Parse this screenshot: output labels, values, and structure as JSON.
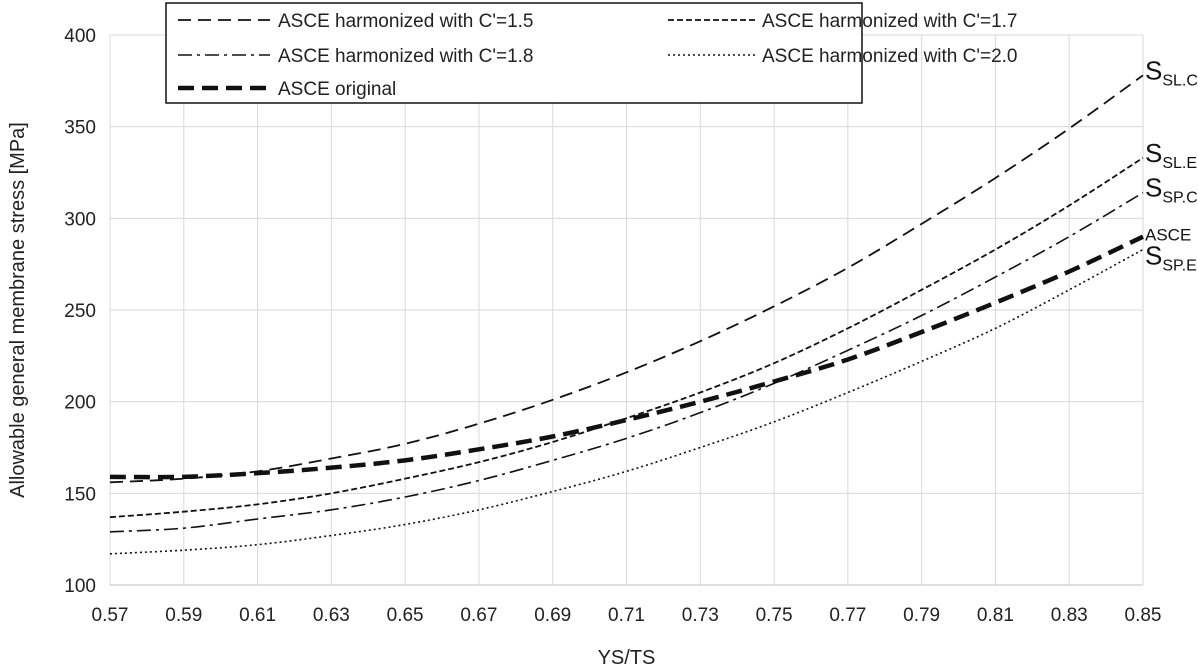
{
  "chart_data": {
    "type": "line",
    "title": "",
    "xlabel": "YS/TS",
    "ylabel": "Allowable general membrane stress [MPa]",
    "xlim": [
      0.57,
      0.85
    ],
    "ylim": [
      100,
      400
    ],
    "x_ticks": [
      "0.57",
      "0.59",
      "0.61",
      "0.63",
      "0.65",
      "0.67",
      "0.69",
      "0.71",
      "0.73",
      "0.75",
      "0.77",
      "0.79",
      "0.81",
      "0.83",
      "0.85"
    ],
    "y_ticks": [
      "100",
      "150",
      "200",
      "250",
      "300",
      "350",
      "400"
    ],
    "grid": true,
    "legend_position": "top",
    "x": [
      0.57,
      0.59,
      0.61,
      0.63,
      0.65,
      0.67,
      0.69,
      0.71,
      0.73,
      0.75,
      0.77,
      0.79,
      0.81,
      0.83,
      0.85
    ],
    "series": [
      {
        "name": "ASCE harmonized with C'=1.5",
        "style": "dashed",
        "end_label": {
          "main": "S",
          "sub": "SL.C"
        },
        "values": [
          156,
          158,
          162,
          169,
          177,
          188,
          201,
          216,
          233,
          252,
          273,
          297,
          322,
          349,
          378
        ]
      },
      {
        "name": "ASCE harmonized with C'=1.7",
        "style": "short-dashed",
        "end_label": {
          "main": "S",
          "sub": "SL.E"
        },
        "values": [
          137,
          140,
          144,
          150,
          158,
          167,
          178,
          191,
          205,
          221,
          240,
          261,
          283,
          307,
          333
        ]
      },
      {
        "name": "ASCE harmonized with C'=1.8",
        "style": "dash-dot",
        "end_label": {
          "main": "S",
          "sub": "SP.C"
        },
        "values": [
          129,
          131,
          136,
          141,
          148,
          157,
          168,
          180,
          194,
          210,
          228,
          247,
          268,
          290,
          314
        ]
      },
      {
        "name": "ASCE harmonized with C'=2.0",
        "style": "dotted",
        "end_label": {
          "main": "S",
          "sub": "SP.E"
        },
        "values": [
          117,
          119,
          122,
          127,
          133,
          141,
          151,
          162,
          175,
          189,
          205,
          222,
          240,
          261,
          283
        ]
      },
      {
        "name": "ASCE original",
        "style": "bold-dashed",
        "end_label": {
          "main": "ASCE",
          "sub": ""
        },
        "values": [
          159,
          159,
          161,
          164,
          168,
          174,
          181,
          190,
          200,
          211,
          223,
          238,
          254,
          271,
          290
        ]
      }
    ]
  }
}
